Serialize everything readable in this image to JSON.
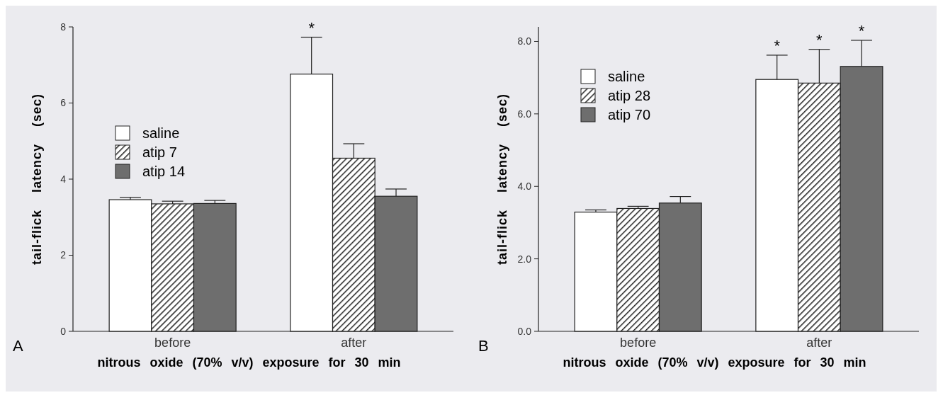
{
  "chart_data": [
    {
      "type": "bar",
      "categories": [
        "before",
        "after"
      ],
      "xlabel": "nitrous oxide (70% v/v) exposure for 30 min",
      "ylabel": "tail-flick latency (sec)",
      "ylim": [
        0,
        8
      ],
      "yticks": [
        0,
        2,
        4,
        6,
        8
      ],
      "legend": "top left",
      "grid": false,
      "series": [
        {
          "name": "saline",
          "color": "#ffffff",
          "values": [
            3.46,
            6.76
          ],
          "errors": [
            0.06,
            0.97
          ]
        },
        {
          "name": "atip 7",
          "color": "#222222",
          "values": [
            3.35,
            4.55
          ],
          "errors": [
            0.07,
            0.38
          ]
        },
        {
          "name": "atip 14",
          "color": "#6e6e6e",
          "values": [
            3.36,
            3.55
          ],
          "errors": [
            0.08,
            0.19
          ]
        }
      ],
      "annotations": [
        "*",
        "A"
      ]
    },
    {
      "type": "bar",
      "categories": [
        "before",
        "after"
      ],
      "xlabel": "nitrous oxide (70% v/v) exposure for 30 min",
      "ylabel": "tail-flick latency (sec)",
      "ylim": [
        0,
        8.4
      ],
      "yticks": [
        {
          "value": 0,
          "label": "0.0"
        },
        {
          "value": 2,
          "label": "2.0"
        },
        {
          "value": 4,
          "label": "4.0"
        },
        {
          "value": 6,
          "label": "6.0"
        },
        {
          "value": 8,
          "label": "8.0"
        }
      ],
      "legend": "top left",
      "grid": false,
      "series": [
        {
          "name": "saline",
          "color": "#ffffff",
          "values": [
            3.29,
            6.95
          ],
          "errors": [
            0.06,
            0.67
          ]
        },
        {
          "name": "atip 28",
          "color": "#222222",
          "values": [
            3.39,
            6.85
          ],
          "errors": [
            0.06,
            0.93
          ]
        },
        {
          "name": "atip 70",
          "color": "#6e6e6e",
          "values": [
            3.54,
            7.31
          ],
          "errors": [
            0.18,
            0.72
          ]
        }
      ],
      "annotations": [
        "*",
        "*",
        "*",
        "B"
      ]
    }
  ]
}
